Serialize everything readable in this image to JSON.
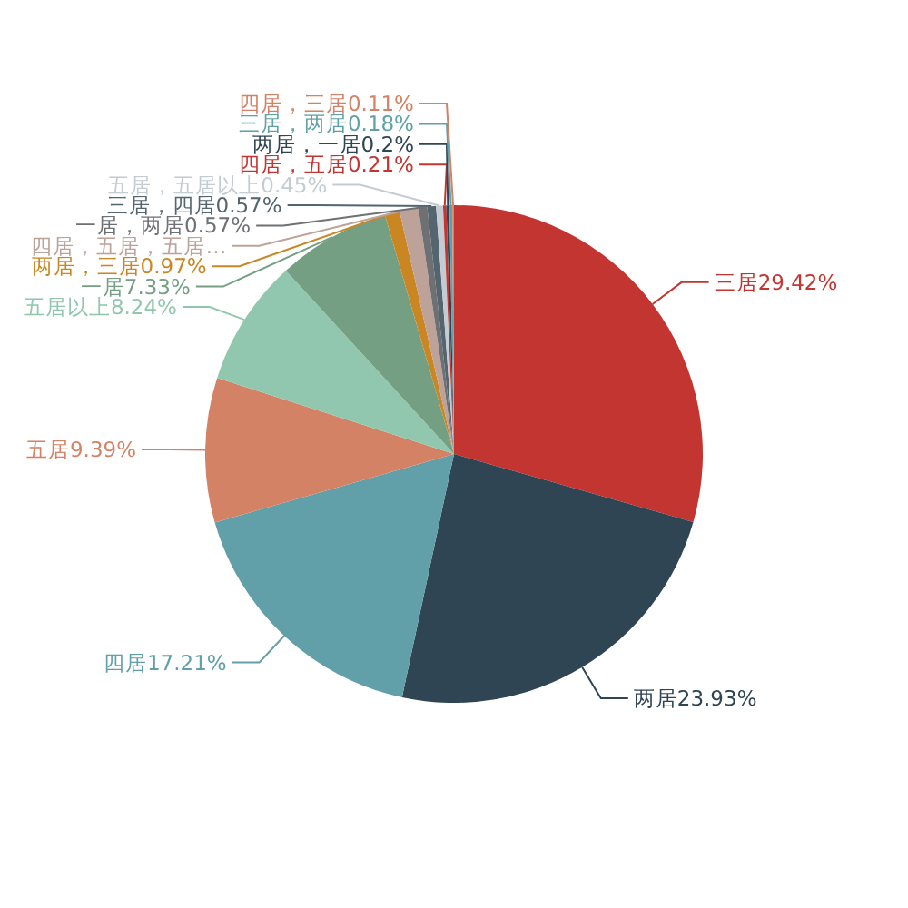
{
  "chart_data": {
    "type": "pie",
    "categories": [
      "三居",
      "两居",
      "四居",
      "五居",
      "五居以上",
      "一居",
      "两居，三居",
      "四居，五居，五居…",
      "一居，两居",
      "三居，四居",
      "五居，五居以上",
      "四居，五居",
      "两居，一居",
      "三居，两居",
      "四居，三居"
    ],
    "values": [
      29.42,
      23.93,
      17.21,
      9.39,
      8.24,
      7.33,
      0.97,
      1.22,
      0.57,
      0.57,
      0.45,
      0.21,
      0.2,
      0.18,
      0.11
    ],
    "value_labels": [
      "29.42%",
      "23.93%",
      "17.21%",
      "9.39%",
      "8.24%",
      "7.33%",
      "0.97%",
      null,
      "0.57%",
      "0.57%",
      "0.45%",
      "0.21%",
      "0.2%",
      "0.18%",
      "0.11%"
    ],
    "colors": [
      "#c23531",
      "#2f4554",
      "#61a0a8",
      "#d48265",
      "#91c7ae",
      "#749f83",
      "#ca8622",
      "#bda29a",
      "#6e7074",
      "#546570",
      "#c4ccd3",
      "#c23531",
      "#2f4554",
      "#61a0a8",
      "#d48265"
    ]
  }
}
